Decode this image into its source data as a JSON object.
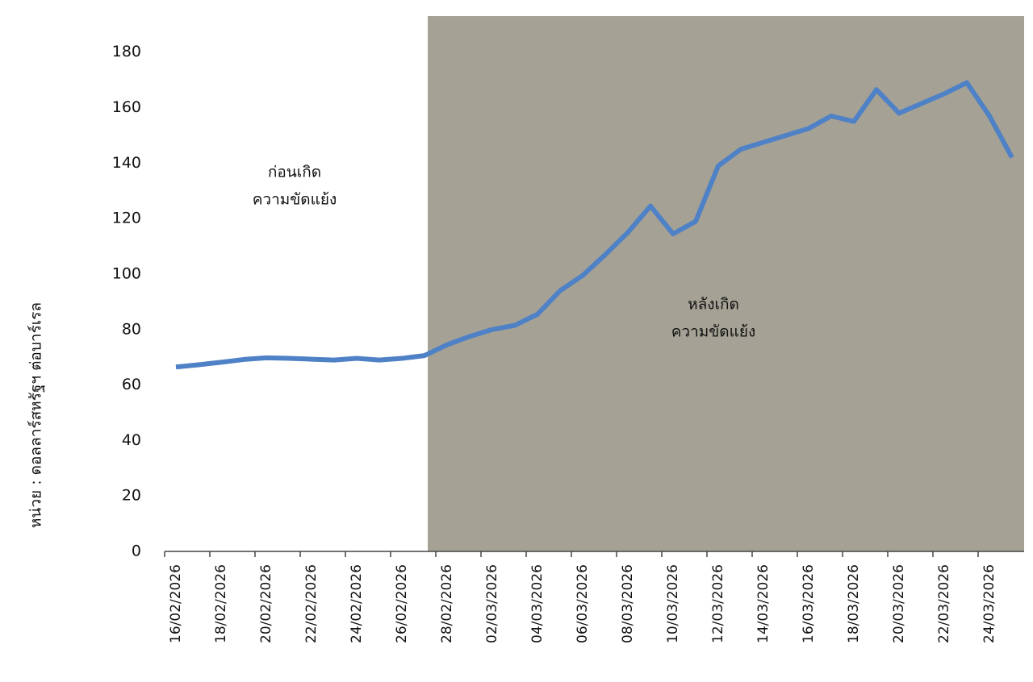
{
  "chart_data": {
    "type": "line",
    "y_label": "หน่วย : ดอลลาร์สหรัฐฯ ต่อบาร์เรล",
    "categories": [
      "16/02/2026",
      null,
      "18/02/2026",
      null,
      "20/02/2026",
      null,
      "22/02/2026",
      null,
      "24/02/2026",
      null,
      "26/02/2026",
      null,
      "28/02/2026",
      null,
      "02/03/2026",
      null,
      "04/03/2026",
      null,
      "06/03/2026",
      null,
      "08/03/2026",
      null,
      "10/03/2026",
      null,
      "12/03/2026",
      null,
      "14/03/2026",
      null,
      "16/03/2026",
      null,
      "18/03/2026",
      null,
      "20/03/2026",
      null,
      "22/03/2026",
      null,
      "24/03/2026",
      null
    ],
    "series": [
      {
        "color": "#4f81c6",
        "values": [
          66.5,
          67.3,
          68.2,
          69.2,
          69.8,
          69.6,
          69.3,
          69.0,
          69.6,
          69.0,
          69.6,
          70.6,
          74.5,
          77.5,
          80,
          81.5,
          85.5,
          94,
          99.5,
          107,
          115,
          124.5,
          114.5,
          119,
          139,
          145,
          147.5,
          150,
          152.5,
          157,
          155,
          166.5,
          158,
          161.5,
          165,
          169,
          157,
          142
        ]
      }
    ],
    "ylim": [
      0,
      193
    ],
    "yticks": [
      0,
      20,
      40,
      60,
      80,
      100,
      120,
      140,
      160,
      180
    ],
    "grid": false,
    "annotations": [
      {
        "lines": [
          "ก่อนเกิด",
          "ความขัดแย้ง"
        ],
        "color": "#4e6b2a"
      },
      {
        "lines": [
          "หลังเกิด",
          "ความขัดแย้ง"
        ],
        "color": "#c00000"
      }
    ]
  }
}
